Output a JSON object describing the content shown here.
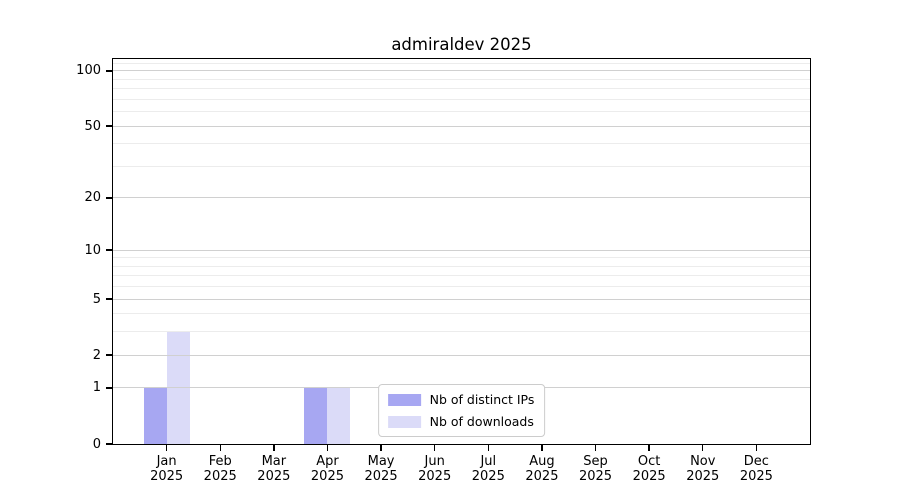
{
  "chart_data": {
    "type": "bar",
    "title": "admiraldev 2025",
    "categories": [
      {
        "month": "Jan",
        "year": "2025"
      },
      {
        "month": "Feb",
        "year": "2025"
      },
      {
        "month": "Mar",
        "year": "2025"
      },
      {
        "month": "Apr",
        "year": "2025"
      },
      {
        "month": "May",
        "year": "2025"
      },
      {
        "month": "Jun",
        "year": "2025"
      },
      {
        "month": "Jul",
        "year": "2025"
      },
      {
        "month": "Aug",
        "year": "2025"
      },
      {
        "month": "Sep",
        "year": "2025"
      },
      {
        "month": "Oct",
        "year": "2025"
      },
      {
        "month": "Nov",
        "year": "2025"
      },
      {
        "month": "Dec",
        "year": "2025"
      }
    ],
    "series": [
      {
        "name": "Nb of distinct IPs",
        "color": "#a7a7f2",
        "values": [
          1,
          0,
          0,
          1,
          0,
          0,
          0,
          0,
          0,
          0,
          0,
          0
        ]
      },
      {
        "name": "Nb of downloads",
        "color": "#dbdbf8",
        "values": [
          3,
          0,
          0,
          1,
          0,
          0,
          0,
          0,
          0,
          0,
          0,
          0
        ]
      }
    ],
    "y_axis": {
      "scale": "log1p",
      "ticks": [
        100,
        50,
        20,
        10,
        5,
        2,
        1,
        0
      ],
      "minor_gridlines": [
        3,
        4,
        6,
        7,
        8,
        9,
        30,
        40,
        60,
        70,
        80,
        90,
        110
      ],
      "ylim": [
        0,
        116
      ]
    },
    "x_axis": {
      "tick_label_year_on_second_line": true
    },
    "legend": {
      "position": "lower center"
    },
    "grid": true,
    "colors": {
      "axis": "#000000",
      "grid_major": "#d0d0d0",
      "grid_minor": "#ececec",
      "legend_border": "#cccccc",
      "background": "#ffffff"
    }
  }
}
